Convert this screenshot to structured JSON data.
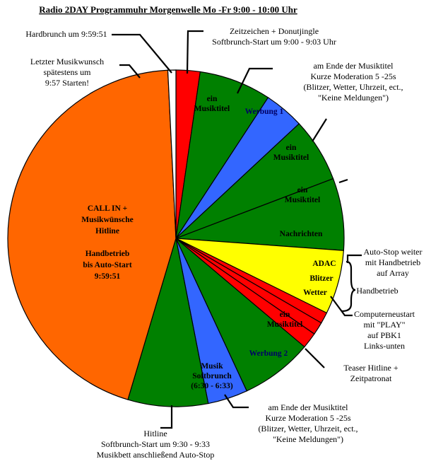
{
  "title": "Radio 2DAY Programmuhr Morgenwelle Mo -Fr  9:00 - 10:00 Uhr",
  "chart_data": {
    "type": "pie",
    "segments": [
      {
        "key": "zeitzeichen",
        "minutes": 1.5,
        "color": "#ff0000",
        "lines": []
      },
      {
        "key": "musik1",
        "minutes": 4.5,
        "color": "#008000",
        "lines": [
          "ein",
          "Musiktitel"
        ]
      },
      {
        "key": "werbung1",
        "minutes": 2.5,
        "color": "#3366ff",
        "lines": [
          "Werbung 1"
        ]
      },
      {
        "key": "musik2",
        "minutes": 4.0,
        "color": "#008000",
        "lines": [
          "ein",
          "Musiktitel"
        ]
      },
      {
        "key": "musik3",
        "minutes": 4.5,
        "color": "#008000",
        "lines": [
          "ein",
          "Musiktitel"
        ]
      },
      {
        "key": "nachrichten",
        "minutes": 4.0,
        "color": "#ffff00",
        "lines": [
          "Nachrichten"
        ]
      },
      {
        "key": "adac",
        "minutes": 0.7,
        "color": "#ff0000",
        "lines": [
          "ADAC"
        ]
      },
      {
        "key": "blitzer",
        "minutes": 0.8,
        "color": "#ff0000",
        "lines": [
          "Blitzer"
        ]
      },
      {
        "key": "wetter",
        "minutes": 1.0,
        "color": "#ff0000",
        "lines": [
          "Wetter"
        ]
      },
      {
        "key": "musik4",
        "minutes": 4.5,
        "color": "#008000",
        "lines": [
          "ein",
          "Musiktitel"
        ]
      },
      {
        "key": "werbung2",
        "minutes": 2.5,
        "color": "#3366ff",
        "lines": [
          "Werbung 2"
        ]
      },
      {
        "key": "softbrunch",
        "minutes": 5.0,
        "color": "#008000",
        "lines": [
          "Musik",
          "Softbrunch",
          "(6:30 - 6:33)"
        ]
      },
      {
        "key": "callin",
        "minutes": 29.0,
        "color": "#ff6600",
        "lines": [
          "CALL IN +",
          "Musikwünsche",
          "Hitline",
          "",
          "Handbetrieb",
          "bis Auto-Start",
          "9:59:51"
        ]
      },
      {
        "key": "hardbrunch",
        "minutes": 0.5,
        "color": "#ffffff",
        "lines": []
      }
    ]
  },
  "annotations": {
    "hardbrunch": [
      "Hardbrunch um 9:59:51"
    ],
    "letzter": [
      "Letzter Musikwunsch",
      "spätestens um",
      "9:57 Starten!"
    ],
    "zeitzeichen": [
      "Zeitzeichen + Donutjingle",
      "Softbrunch-Start um 9:00 - 9:03 Uhr"
    ],
    "moderation_top": [
      "am Ende der Musiktitel",
      "Kurze Moderation 5 -25s",
      "(Blitzer, Wetter, Uhrzeit, ect.,",
      "\"Keine Meldungen\")"
    ],
    "autostop": [
      "Auto-Stop weiter",
      "mit Handbetrieb",
      "auf Array"
    ],
    "handbetrieb": [
      "Handbetrieb"
    ],
    "computer": [
      "Computerneustart",
      "mit \"PLAY\"",
      "auf PBK1",
      "Links-unten"
    ],
    "teaser": [
      "Teaser Hitline +",
      "Zeitpatronat"
    ],
    "moderation_bottom": [
      "am Ende der Musiktitel",
      "Kurze Moderation 5 -25s",
      "(Blitzer, Wetter, Uhrzeit, ect.,",
      "\"Keine Meldungen\")"
    ],
    "hitline": [
      "Hitline",
      "Softbrunch-Start um 9:30 - 9:33",
      "Musikbett anschließend Auto-Stop"
    ]
  }
}
